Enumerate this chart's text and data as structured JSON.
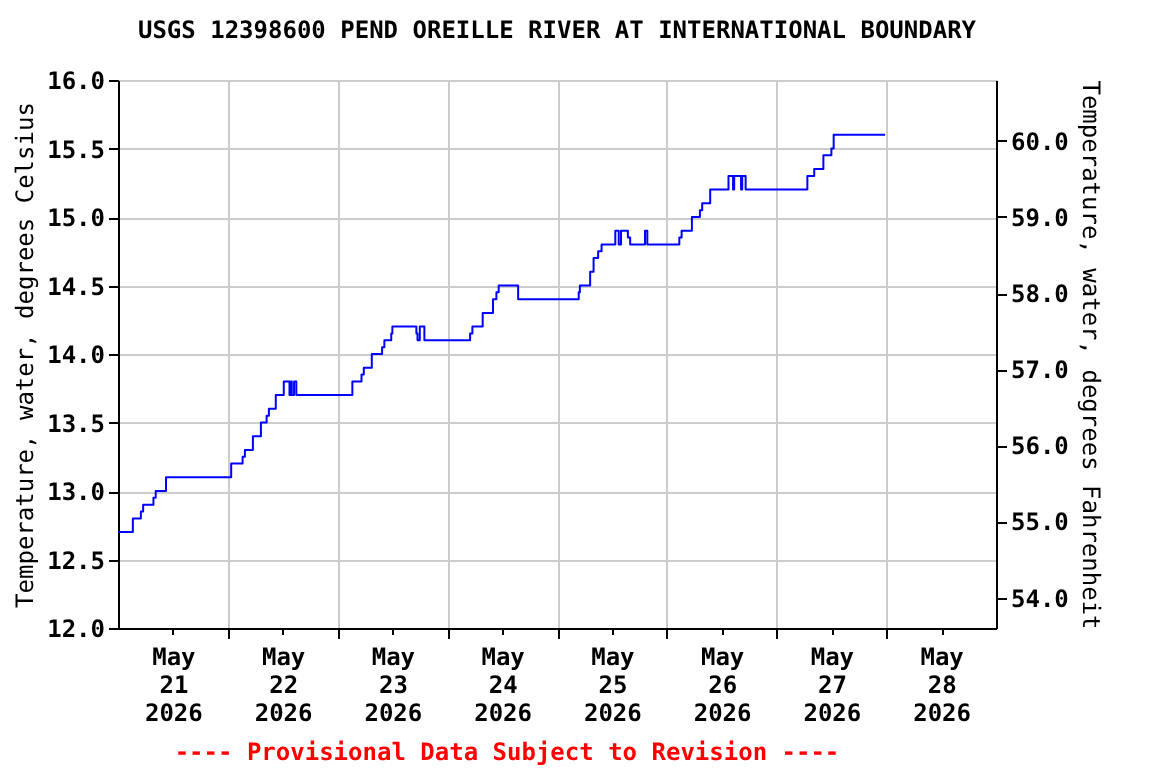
{
  "chart_data": {
    "type": "step",
    "title": "USGS 12398600 PEND OREILLE RIVER AT INTERNATIONAL BOUNDARY",
    "ylabel": "Temperature, water, degrees Celsius",
    "y2label": "Temperature, water, degrees Fahrenheit",
    "annotations": [
      "---- Provisional Data Subject to Revision ----"
    ],
    "x": [
      "2026-05-21T00:00",
      "2026-05-21T03:15",
      "2026-05-21T05:00",
      "2026-05-21T05:30",
      "2026-05-21T07:45",
      "2026-05-21T08:15",
      "2026-05-21T10:30",
      "2026-05-22T00:45",
      "2026-05-22T03:15",
      "2026-05-22T03:45",
      "2026-05-22T05:30",
      "2026-05-22T07:15",
      "2026-05-22T08:30",
      "2026-05-22T09:00",
      "2026-05-22T10:30",
      "2026-05-22T12:15",
      "2026-05-22T13:30",
      "2026-05-22T13:45",
      "2026-05-22T14:00",
      "2026-05-22T14:30",
      "2026-05-22T15:00",
      "2026-05-23T03:15",
      "2026-05-23T05:15",
      "2026-05-23T05:45",
      "2026-05-23T07:30",
      "2026-05-23T09:45",
      "2026-05-23T10:15",
      "2026-05-23T11:45",
      "2026-05-23T12:00",
      "2026-05-23T17:15",
      "2026-05-23T17:30",
      "2026-05-23T18:00",
      "2026-05-23T19:00",
      "2026-05-24T05:00",
      "2026-05-24T05:30",
      "2026-05-24T07:45",
      "2026-05-24T10:00",
      "2026-05-24T10:45",
      "2026-05-24T11:15",
      "2026-05-24T15:30",
      "2026-05-25T04:45",
      "2026-05-25T05:00",
      "2026-05-25T07:15",
      "2026-05-25T08:00",
      "2026-05-25T09:00",
      "2026-05-25T09:45",
      "2026-05-25T12:45",
      "2026-05-25T13:30",
      "2026-05-25T14:00",
      "2026-05-25T15:30",
      "2026-05-25T16:00",
      "2026-05-25T19:15",
      "2026-05-25T19:45",
      "2026-05-26T02:45",
      "2026-05-26T03:15",
      "2026-05-26T05:30",
      "2026-05-26T07:15",
      "2026-05-26T07:45",
      "2026-05-26T09:30",
      "2026-05-26T13:30",
      "2026-05-26T14:30",
      "2026-05-26T14:45",
      "2026-05-26T16:15",
      "2026-05-26T16:30",
      "2026-05-26T17:15",
      "2026-05-27T06:45",
      "2026-05-27T08:15",
      "2026-05-27T10:15",
      "2026-05-27T12:00",
      "2026-05-27T12:30",
      "2026-05-27T23:45"
    ],
    "series": [
      {
        "color": "#0000ff",
        "values": [
          12.7,
          12.8,
          12.85,
          12.9,
          12.95,
          13.0,
          13.1,
          13.2,
          13.25,
          13.3,
          13.4,
          13.5,
          13.55,
          13.6,
          13.7,
          13.8,
          13.7,
          13.8,
          13.7,
          13.8,
          13.7,
          13.8,
          13.85,
          13.9,
          14.0,
          14.05,
          14.1,
          14.15,
          14.2,
          14.15,
          14.1,
          14.2,
          14.1,
          14.15,
          14.2,
          14.3,
          14.4,
          14.45,
          14.5,
          14.4,
          14.45,
          14.5,
          14.6,
          14.7,
          14.75,
          14.8,
          14.9,
          14.8,
          14.9,
          14.85,
          14.8,
          14.9,
          14.8,
          14.85,
          14.9,
          15.0,
          15.05,
          15.1,
          15.2,
          15.3,
          15.2,
          15.3,
          15.2,
          15.3,
          15.2,
          15.3,
          15.35,
          15.45,
          15.5,
          15.6,
          15.6
        ]
      }
    ],
    "xlim": [
      "2026-05-21T00:00",
      "2026-05-29T00:00"
    ],
    "xticks": [
      {
        "value": "2026-05-21T12:00",
        "label": "May 21 2026"
      },
      {
        "value": "2026-05-22T12:00",
        "label": "May 22 2026"
      },
      {
        "value": "2026-05-23T12:00",
        "label": "May 23 2026"
      },
      {
        "value": "2026-05-24T12:00",
        "label": "May 24 2026"
      },
      {
        "value": "2026-05-25T12:00",
        "label": "May 25 2026"
      },
      {
        "value": "2026-05-26T12:00",
        "label": "May 26 2026"
      },
      {
        "value": "2026-05-27T12:00",
        "label": "May 27 2026"
      },
      {
        "value": "2026-05-28T12:00",
        "label": "May 28 2026"
      }
    ],
    "ylim": [
      12.0,
      16.0
    ],
    "yticks": [
      {
        "value": 12.0,
        "label": "12.0"
      },
      {
        "value": 12.5,
        "label": "12.5"
      },
      {
        "value": 13.0,
        "label": "13.0"
      },
      {
        "value": 13.5,
        "label": "13.5"
      },
      {
        "value": 14.0,
        "label": "14.0"
      },
      {
        "value": 14.5,
        "label": "14.5"
      },
      {
        "value": 15.0,
        "label": "15.0"
      },
      {
        "value": 15.5,
        "label": "15.5"
      },
      {
        "value": 16.0,
        "label": "16.0"
      }
    ],
    "y2lim": [
      53.6,
      60.8
    ],
    "y2ticks": [
      {
        "value": 54,
        "label": "54.0"
      },
      {
        "value": 55,
        "label": "55.0"
      },
      {
        "value": 56,
        "label": "56.0"
      },
      {
        "value": 57,
        "label": "57.0"
      },
      {
        "value": 58,
        "label": "58.0"
      },
      {
        "value": 59,
        "label": "59.0"
      },
      {
        "value": 60,
        "label": "60.0"
      }
    ],
    "grid": true
  }
}
